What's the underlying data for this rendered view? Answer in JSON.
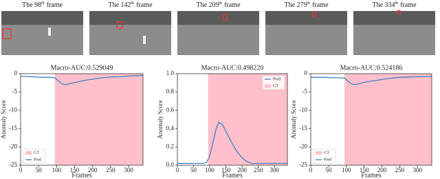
{
  "frames": [
    {
      "label": "The 98",
      "sup": "th",
      "after": "frame"
    },
    {
      "label": "The 142",
      "sup": "th",
      "after": "frame"
    },
    {
      "label": "The 209",
      "sup": "th",
      "after": "frame"
    },
    {
      "label": "The 279",
      "sup": "th",
      "after": "frame"
    },
    {
      "label": "The 334",
      "sup": "th",
      "after": "frame"
    }
  ],
  "chart_data": [
    {
      "type": "line",
      "title": "Macro-AUC:0.529049",
      "x_label": "Frames",
      "y_label": "Anomaly Score",
      "x": [
        0,
        20,
        40,
        60,
        80,
        95,
        105,
        115,
        125,
        140,
        160,
        180,
        200,
        220,
        250,
        280,
        310,
        340
      ],
      "series": [
        {
          "name": "Pred",
          "color": "#3f7fc0",
          "values": [
            -0.7,
            -0.8,
            -0.9,
            -1,
            -1,
            -1.1,
            -2,
            -2.8,
            -3,
            -2.6,
            -2.2,
            -1.8,
            -1.5,
            -1.2,
            -0.9,
            -0.8,
            -0.6,
            -0.5
          ]
        }
      ],
      "gt": {
        "name": "GT",
        "color": "#ffc0cb",
        "start": 95,
        "end": 340
      },
      "xlim": [
        0,
        340
      ],
      "ylim": [
        -25,
        0
      ],
      "xticks": [
        0,
        50,
        100,
        150,
        200,
        250,
        300
      ],
      "yticks": [
        0,
        -5,
        -10,
        -15,
        -20,
        -25
      ],
      "legend": "lower left"
    },
    {
      "type": "line",
      "title": "Macro-AUC:0.498220",
      "x_label": "Frames",
      "y_label": "Anomaly Score",
      "x": [
        0,
        40,
        80,
        90,
        100,
        110,
        120,
        128,
        140,
        160,
        180,
        200,
        215,
        230,
        260,
        300,
        340
      ],
      "series": [
        {
          "name": "Pred",
          "color": "#3f7fc0",
          "values": [
            0.02,
            0.02,
            0.02,
            0.03,
            0.1,
            0.25,
            0.4,
            0.47,
            0.44,
            0.3,
            0.17,
            0.08,
            0.04,
            0.02,
            0.02,
            0.02,
            0.02
          ]
        }
      ],
      "gt": {
        "name": "GT",
        "color": "#ffc0cb",
        "start": 95,
        "end": 340
      },
      "xlim": [
        0,
        340
      ],
      "ylim": [
        0,
        1
      ],
      "xticks": [
        0,
        50,
        100,
        150,
        200,
        250,
        300
      ],
      "yticks": [
        {
          "value": 0,
          "label": "0.0"
        },
        0.2,
        0.4,
        0.6,
        0.8,
        {
          "value": 1,
          "label": "1.0"
        }
      ],
      "legend": "upper right"
    },
    {
      "type": "line",
      "title": "Macro-AUC:0.524186",
      "x_label": "Frames",
      "y_label": "Anomaly Score",
      "x": [
        0,
        20,
        40,
        60,
        80,
        95,
        105,
        115,
        125,
        140,
        160,
        180,
        200,
        220,
        250,
        280,
        310,
        340
      ],
      "series": [
        {
          "name": "Pred",
          "color": "#3f7fc0",
          "values": [
            -1,
            -1,
            -1,
            -1.1,
            -1.1,
            -1.2,
            -2.1,
            -2.8,
            -3,
            -2.6,
            -2.2,
            -1.9,
            -1.6,
            -1.3,
            -1,
            -0.9,
            -0.8,
            -0.7
          ]
        }
      ],
      "gt": {
        "name": "GT",
        "color": "#ffc0cb",
        "start": 95,
        "end": 340
      },
      "xlim": [
        0,
        340
      ],
      "ylim": [
        -25,
        0
      ],
      "xticks": [
        0,
        50,
        100,
        150,
        200,
        250,
        300
      ],
      "yticks": [
        0,
        -5,
        -10,
        -15,
        -20,
        -25
      ],
      "legend": "lower left"
    }
  ]
}
